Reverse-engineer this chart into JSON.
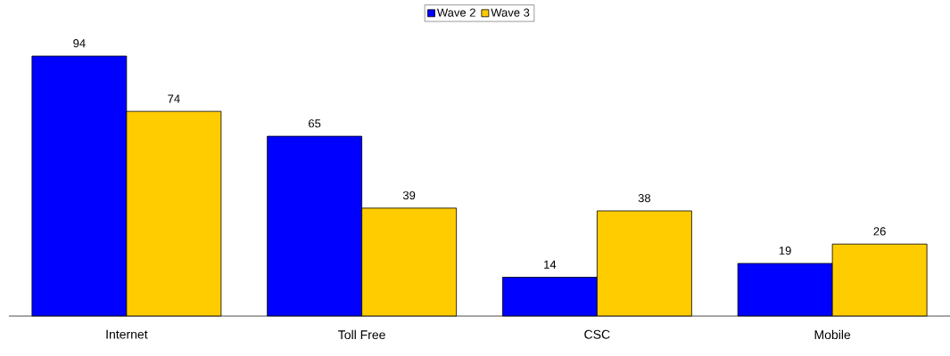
{
  "chart_data": {
    "type": "bar",
    "categories": [
      "Internet",
      "Toll Free",
      "CSC",
      "Mobile"
    ],
    "series": [
      {
        "name": "Wave 2",
        "color": "#0000ff",
        "values": [
          94,
          65,
          14,
          19
        ]
      },
      {
        "name": "Wave 3",
        "color": "#ffcc00",
        "values": [
          74,
          39,
          38,
          26
        ]
      }
    ],
    "data_labels": true,
    "legend": "top"
  }
}
